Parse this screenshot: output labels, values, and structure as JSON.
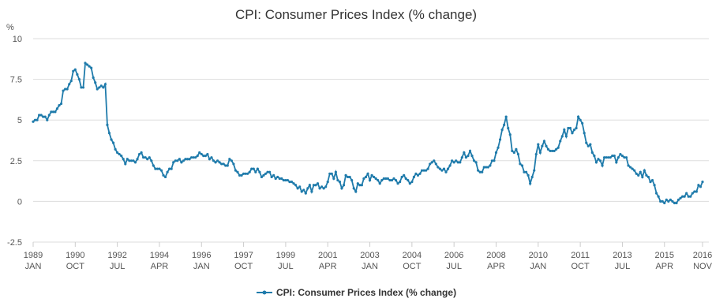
{
  "chart_data": {
    "type": "line",
    "title": "CPI: Consumer Prices Index (% change)",
    "ylabel": "%",
    "ylim": [
      -2.5,
      10
    ],
    "yticks": [
      -2.5,
      0,
      2.5,
      5,
      7.5,
      10
    ],
    "grid": true,
    "xlim": [
      "1989-01",
      "2016-11"
    ],
    "xticks": [
      {
        "value": "1989-01",
        "label": [
          "1989",
          "JAN"
        ]
      },
      {
        "value": "1990-10",
        "label": [
          "1990",
          "OCT"
        ]
      },
      {
        "value": "1992-07",
        "label": [
          "1992",
          "JUL"
        ]
      },
      {
        "value": "1994-04",
        "label": [
          "1994",
          "APR"
        ]
      },
      {
        "value": "1996-01",
        "label": [
          "1996",
          "JAN"
        ]
      },
      {
        "value": "1997-10",
        "label": [
          "1997",
          "OCT"
        ]
      },
      {
        "value": "1999-07",
        "label": [
          "1999",
          "JUL"
        ]
      },
      {
        "value": "2001-04",
        "label": [
          "2001",
          "APR"
        ]
      },
      {
        "value": "2003-01",
        "label": [
          "2003",
          "JAN"
        ]
      },
      {
        "value": "2004-10",
        "label": [
          "2004",
          "OCT"
        ]
      },
      {
        "value": "2006-07",
        "label": [
          "2006",
          "JUL"
        ]
      },
      {
        "value": "2008-04",
        "label": [
          "2008",
          "APR"
        ]
      },
      {
        "value": "2010-01",
        "label": [
          "2010",
          "JAN"
        ]
      },
      {
        "value": "2011-10",
        "label": [
          "2011",
          "OCT"
        ]
      },
      {
        "value": "2013-07",
        "label": [
          "2013",
          "JUL"
        ]
      },
      {
        "value": "2015-04",
        "label": [
          "2015",
          "APR"
        ]
      },
      {
        "value": "2016-11",
        "label": [
          "2016",
          "NOV"
        ]
      }
    ],
    "x": [
      "1989-01",
      "1989-02",
      "1989-03",
      "1989-04",
      "1989-05",
      "1989-06",
      "1989-07",
      "1989-08",
      "1989-09",
      "1989-10",
      "1989-11",
      "1989-12",
      "1990-01",
      "1990-02",
      "1990-03",
      "1990-04",
      "1990-05",
      "1990-06",
      "1990-07",
      "1990-08",
      "1990-09",
      "1990-10",
      "1990-11",
      "1990-12",
      "1991-01",
      "1991-02",
      "1991-03",
      "1991-04",
      "1991-05",
      "1991-06",
      "1991-07",
      "1991-08",
      "1991-09",
      "1991-10",
      "1991-11",
      "1991-12",
      "1992-01",
      "1992-02",
      "1992-03",
      "1992-04",
      "1992-05",
      "1992-06",
      "1992-07",
      "1992-08",
      "1992-09",
      "1992-10",
      "1992-11",
      "1992-12",
      "1993-01",
      "1993-02",
      "1993-03",
      "1993-04",
      "1993-05",
      "1993-06",
      "1993-07",
      "1993-08",
      "1993-09",
      "1993-10",
      "1993-11",
      "1993-12",
      "1994-01",
      "1994-02",
      "1994-03",
      "1994-04",
      "1994-05",
      "1994-06",
      "1994-07",
      "1994-08",
      "1994-09",
      "1994-10",
      "1994-11",
      "1994-12",
      "1995-01",
      "1995-02",
      "1995-03",
      "1995-04",
      "1995-05",
      "1995-06",
      "1995-07",
      "1995-08",
      "1995-09",
      "1995-10",
      "1995-11",
      "1995-12",
      "1996-01",
      "1996-02",
      "1996-03",
      "1996-04",
      "1996-05",
      "1996-06",
      "1996-07",
      "1996-08",
      "1996-09",
      "1996-10",
      "1996-11",
      "1996-12",
      "1997-01",
      "1997-02",
      "1997-03",
      "1997-04",
      "1997-05",
      "1997-06",
      "1997-07",
      "1997-08",
      "1997-09",
      "1997-10",
      "1997-11",
      "1997-12",
      "1998-01",
      "1998-02",
      "1998-03",
      "1998-04",
      "1998-05",
      "1998-06",
      "1998-07",
      "1998-08",
      "1998-09",
      "1998-10",
      "1998-11",
      "1998-12",
      "1999-01",
      "1999-02",
      "1999-03",
      "1999-04",
      "1999-05",
      "1999-06",
      "1999-07",
      "1999-08",
      "1999-09",
      "1999-10",
      "1999-11",
      "1999-12",
      "2000-01",
      "2000-02",
      "2000-03",
      "2000-04",
      "2000-05",
      "2000-06",
      "2000-07",
      "2000-08",
      "2000-09",
      "2000-10",
      "2000-11",
      "2000-12",
      "2001-01",
      "2001-02",
      "2001-03",
      "2001-04",
      "2001-05",
      "2001-06",
      "2001-07",
      "2001-08",
      "2001-09",
      "2001-10",
      "2001-11",
      "2001-12",
      "2002-01",
      "2002-02",
      "2002-03",
      "2002-04",
      "2002-05",
      "2002-06",
      "2002-07",
      "2002-08",
      "2002-09",
      "2002-10",
      "2002-11",
      "2002-12",
      "2003-01",
      "2003-02",
      "2003-03",
      "2003-04",
      "2003-05",
      "2003-06",
      "2003-07",
      "2003-08",
      "2003-09",
      "2003-10",
      "2003-11",
      "2003-12",
      "2004-01",
      "2004-02",
      "2004-03",
      "2004-04",
      "2004-05",
      "2004-06",
      "2004-07",
      "2004-08",
      "2004-09",
      "2004-10",
      "2004-11",
      "2004-12",
      "2005-01",
      "2005-02",
      "2005-03",
      "2005-04",
      "2005-05",
      "2005-06",
      "2005-07",
      "2005-08",
      "2005-09",
      "2005-10",
      "2005-11",
      "2005-12",
      "2006-01",
      "2006-02",
      "2006-03",
      "2006-04",
      "2006-05",
      "2006-06",
      "2006-07",
      "2006-08",
      "2006-09",
      "2006-10",
      "2006-11",
      "2006-12",
      "2007-01",
      "2007-02",
      "2007-03",
      "2007-04",
      "2007-05",
      "2007-06",
      "2007-07",
      "2007-08",
      "2007-09",
      "2007-10",
      "2007-11",
      "2007-12",
      "2008-01",
      "2008-02",
      "2008-03",
      "2008-04",
      "2008-05",
      "2008-06",
      "2008-07",
      "2008-08",
      "2008-09",
      "2008-10",
      "2008-11",
      "2008-12",
      "2009-01",
      "2009-02",
      "2009-03",
      "2009-04",
      "2009-05",
      "2009-06",
      "2009-07",
      "2009-08",
      "2009-09",
      "2009-10",
      "2009-11",
      "2009-12",
      "2010-01",
      "2010-02",
      "2010-03",
      "2010-04",
      "2010-05",
      "2010-06",
      "2010-07",
      "2010-08",
      "2010-09",
      "2010-10",
      "2010-11",
      "2010-12",
      "2011-01",
      "2011-02",
      "2011-03",
      "2011-04",
      "2011-05",
      "2011-06",
      "2011-07",
      "2011-08",
      "2011-09",
      "2011-10",
      "2011-11",
      "2011-12",
      "2012-01",
      "2012-02",
      "2012-03",
      "2012-04",
      "2012-05",
      "2012-06",
      "2012-07",
      "2012-08",
      "2012-09",
      "2012-10",
      "2012-11",
      "2012-12",
      "2013-01",
      "2013-02",
      "2013-03",
      "2013-04",
      "2013-05",
      "2013-06",
      "2013-07",
      "2013-08",
      "2013-09",
      "2013-10",
      "2013-11",
      "2013-12",
      "2014-01",
      "2014-02",
      "2014-03",
      "2014-04",
      "2014-05",
      "2014-06",
      "2014-07",
      "2014-08",
      "2014-09",
      "2014-10",
      "2014-11",
      "2014-12",
      "2015-01",
      "2015-02",
      "2015-03",
      "2015-04",
      "2015-05",
      "2015-06",
      "2015-07",
      "2015-08",
      "2015-09",
      "2015-10",
      "2015-11",
      "2015-12",
      "2016-01",
      "2016-02",
      "2016-03",
      "2016-04",
      "2016-05",
      "2016-06",
      "2016-07",
      "2016-08",
      "2016-09",
      "2016-10",
      "2016-11"
    ],
    "series": [
      {
        "name": "CPI: Consumer Prices Index (% change)",
        "color": "#1f7bab",
        "values": [
          4.9,
          5.0,
          5.0,
          5.3,
          5.3,
          5.2,
          5.2,
          5.0,
          5.3,
          5.5,
          5.5,
          5.5,
          5.7,
          5.9,
          6.0,
          6.8,
          6.9,
          6.9,
          7.2,
          7.4,
          8.0,
          8.1,
          7.8,
          7.5,
          7.0,
          7.0,
          8.5,
          8.4,
          8.3,
          8.2,
          7.6,
          7.3,
          6.9,
          7.0,
          7.1,
          7.0,
          7.2,
          4.7,
          4.2,
          3.8,
          3.6,
          3.2,
          3.0,
          2.9,
          2.8,
          2.6,
          2.3,
          2.6,
          2.5,
          2.5,
          2.5,
          2.4,
          2.6,
          2.9,
          3.0,
          2.7,
          2.7,
          2.6,
          2.7,
          2.5,
          2.2,
          2.0,
          2.0,
          2.0,
          1.9,
          1.6,
          1.5,
          1.8,
          2.0,
          2.0,
          2.4,
          2.5,
          2.5,
          2.6,
          2.4,
          2.5,
          2.6,
          2.6,
          2.6,
          2.7,
          2.7,
          2.7,
          2.8,
          3.0,
          2.9,
          2.8,
          2.8,
          2.9,
          2.6,
          2.7,
          2.5,
          2.4,
          2.5,
          2.4,
          2.3,
          2.3,
          2.2,
          2.2,
          2.6,
          2.5,
          2.3,
          1.9,
          1.8,
          1.6,
          1.6,
          1.7,
          1.7,
          1.7,
          1.8,
          2.0,
          2.0,
          1.8,
          2.0,
          1.8,
          1.5,
          1.6,
          1.7,
          1.8,
          1.8,
          1.5,
          1.6,
          1.4,
          1.5,
          1.4,
          1.4,
          1.3,
          1.3,
          1.3,
          1.2,
          1.2,
          1.1,
          1.0,
          0.8,
          0.9,
          0.6,
          0.7,
          0.5,
          0.8,
          1.0,
          0.6,
          1.0,
          1.0,
          1.1,
          0.8,
          0.9,
          0.8,
          0.9,
          1.2,
          1.7,
          1.7,
          1.4,
          1.8,
          1.3,
          1.2,
          0.8,
          1.0,
          1.6,
          1.5,
          1.5,
          1.3,
          0.8,
          0.6,
          1.1,
          1.0,
          1.0,
          1.4,
          1.5,
          1.7,
          1.3,
          1.6,
          1.5,
          1.4,
          1.3,
          1.1,
          1.3,
          1.4,
          1.4,
          1.4,
          1.3,
          1.3,
          1.4,
          1.3,
          1.1,
          1.2,
          1.5,
          1.6,
          1.4,
          1.3,
          1.1,
          1.2,
          1.5,
          1.7,
          1.6,
          1.7,
          1.9,
          1.9,
          1.9,
          2.0,
          2.3,
          2.4,
          2.5,
          2.3,
          2.1,
          2.0,
          1.9,
          2.0,
          1.8,
          2.0,
          2.2,
          2.5,
          2.4,
          2.5,
          2.4,
          2.4,
          2.7,
          3.0,
          2.7,
          2.8,
          3.1,
          2.8,
          2.5,
          2.4,
          1.9,
          1.8,
          1.8,
          2.1,
          2.1,
          2.1,
          2.2,
          2.5,
          2.5,
          3.0,
          3.3,
          3.8,
          4.4,
          4.7,
          5.2,
          4.5,
          4.1,
          3.1,
          3.0,
          3.2,
          2.9,
          2.3,
          2.2,
          1.8,
          1.8,
          1.6,
          1.1,
          1.5,
          1.9,
          2.9,
          3.5,
          3.0,
          3.4,
          3.7,
          3.4,
          3.2,
          3.1,
          3.1,
          3.1,
          3.2,
          3.3,
          3.7,
          4.0,
          4.4,
          4.0,
          4.5,
          4.5,
          4.2,
          4.4,
          4.5,
          5.2,
          5.0,
          4.8,
          4.2,
          3.6,
          3.4,
          3.5,
          3.0,
          2.8,
          2.4,
          2.6,
          2.5,
          2.2,
          2.7,
          2.7,
          2.7,
          2.7,
          2.8,
          2.8,
          2.4,
          2.7,
          2.9,
          2.8,
          2.7,
          2.7,
          2.2,
          2.1,
          2.0,
          1.9,
          1.7,
          1.6,
          1.8,
          1.5,
          1.9,
          1.6,
          1.5,
          1.2,
          1.3,
          1.0,
          0.5,
          0.3,
          0.0,
          0.0,
          -0.1,
          0.1,
          0.0,
          0.1,
          0.0,
          -0.1,
          -0.1,
          0.1,
          0.2,
          0.3,
          0.3,
          0.5,
          0.3,
          0.3,
          0.5,
          0.6,
          0.6,
          1.0,
          0.9,
          1.2
        ]
      }
    ]
  }
}
